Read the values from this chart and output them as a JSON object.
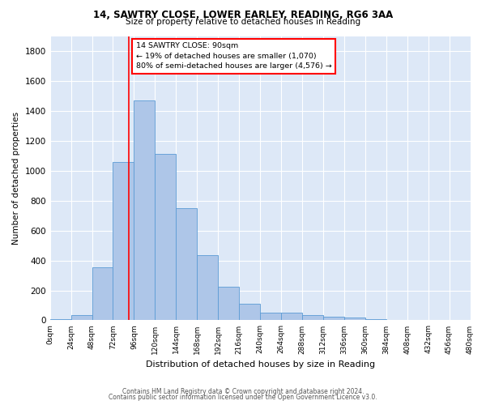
{
  "title1": "14, SAWTRY CLOSE, LOWER EARLEY, READING, RG6 3AA",
  "title2": "Size of property relative to detached houses in Reading",
  "xlabel": "Distribution of detached houses by size in Reading",
  "ylabel": "Number of detached properties",
  "bar_color": "#aec6e8",
  "bar_edge_color": "#5b9bd5",
  "background_color": "#dde8f7",
  "grid_color": "#ffffff",
  "vline_x": 90,
  "vline_color": "red",
  "annotation_line1": "14 SAWTRY CLOSE: 90sqm",
  "annotation_line2": "← 19% of detached houses are smaller (1,070)",
  "annotation_line3": "80% of semi-detached houses are larger (4,576) →",
  "footer1": "Contains HM Land Registry data © Crown copyright and database right 2024.",
  "footer2": "Contains public sector information licensed under the Open Government Licence v3.0.",
  "bin_edges": [
    0,
    24,
    48,
    72,
    96,
    120,
    144,
    168,
    192,
    216,
    240,
    264,
    288,
    312,
    336,
    360,
    384,
    408,
    432,
    456,
    480
  ],
  "bar_heights": [
    10,
    35,
    355,
    1060,
    1470,
    1115,
    750,
    435,
    225,
    110,
    50,
    50,
    35,
    25,
    20,
    10,
    5,
    3,
    2,
    1
  ],
  "ylim": [
    0,
    1900
  ],
  "yticks": [
    0,
    200,
    400,
    600,
    800,
    1000,
    1200,
    1400,
    1600,
    1800
  ]
}
